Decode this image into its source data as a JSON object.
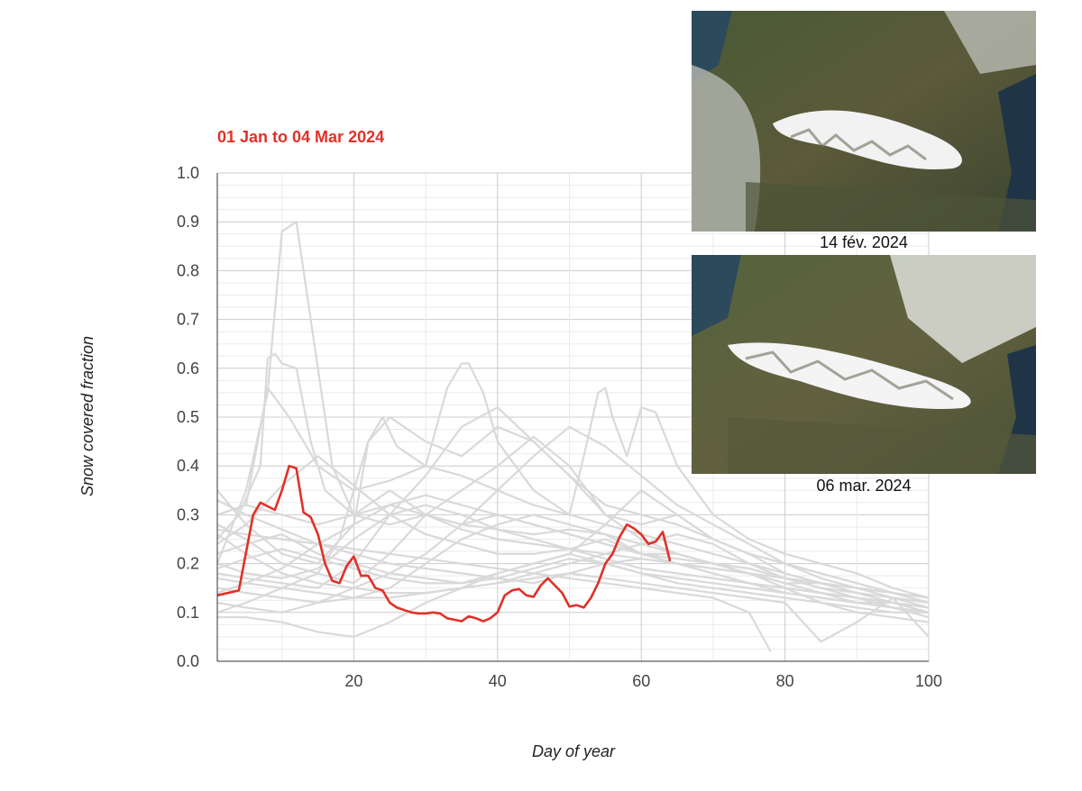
{
  "chart_data": {
    "type": "line",
    "title": "01 Jan to 04 Mar 2024",
    "xlabel": "Day of year",
    "ylabel": "Snow covered fraction",
    "xlim": [
      1,
      100
    ],
    "ylim": [
      0,
      1
    ],
    "x_ticks": [
      20,
      40,
      60,
      80,
      100
    ],
    "y_ticks": [
      "0.0",
      "0.1",
      "0.2",
      "0.3",
      "0.4",
      "0.5",
      "0.6",
      "0.7",
      "0.8",
      "0.9",
      "1.0"
    ],
    "grid": true,
    "highlight_color": "#e03127",
    "background_color": "#d9d9d9",
    "highlight_series": {
      "x": [
        1,
        4,
        6,
        7,
        9,
        10,
        11,
        12,
        13,
        14,
        15,
        16,
        17,
        18,
        19,
        20,
        21,
        22,
        23,
        24,
        25,
        26,
        27,
        28,
        29,
        30,
        31,
        32,
        33,
        34,
        35,
        36,
        37,
        38,
        39,
        40,
        41,
        42,
        43,
        44,
        45,
        46,
        47,
        48,
        49,
        50,
        51,
        52,
        53,
        54,
        55,
        56,
        57,
        58,
        59,
        60,
        61,
        62,
        63,
        64
      ],
      "y": [
        0.135,
        0.145,
        0.3,
        0.325,
        0.31,
        0.35,
        0.4,
        0.395,
        0.305,
        0.295,
        0.26,
        0.2,
        0.165,
        0.16,
        0.195,
        0.215,
        0.175,
        0.175,
        0.15,
        0.145,
        0.12,
        0.11,
        0.105,
        0.1,
        0.098,
        0.098,
        0.1,
        0.098,
        0.088,
        0.085,
        0.082,
        0.092,
        0.088,
        0.082,
        0.088,
        0.1,
        0.135,
        0.145,
        0.148,
        0.135,
        0.132,
        0.155,
        0.17,
        0.155,
        0.14,
        0.112,
        0.115,
        0.11,
        0.13,
        0.16,
        0.2,
        0.22,
        0.255,
        0.28,
        0.272,
        0.26,
        0.24,
        0.245,
        0.265,
        0.205
      ]
    },
    "background_series": [
      {
        "x": [
          1,
          5,
          8,
          10,
          12,
          14,
          17,
          20,
          25,
          30,
          35,
          40,
          45,
          50,
          55,
          60,
          65,
          70,
          75,
          80,
          85,
          90,
          95,
          100
        ],
        "y": [
          0.2,
          0.35,
          0.55,
          0.88,
          0.9,
          0.7,
          0.4,
          0.3,
          0.28,
          0.3,
          0.28,
          0.27,
          0.26,
          0.27,
          0.26,
          0.22,
          0.22,
          0.2,
          0.18,
          0.16,
          0.16,
          0.15,
          0.13,
          0.12
        ]
      },
      {
        "x": [
          1,
          4,
          7,
          8,
          9,
          10,
          12,
          14,
          16,
          20,
          25,
          30,
          35,
          40,
          45,
          50,
          55,
          60,
          65,
          70,
          75,
          80,
          85,
          90,
          95,
          100
        ],
        "y": [
          0.25,
          0.3,
          0.4,
          0.62,
          0.63,
          0.61,
          0.6,
          0.45,
          0.35,
          0.3,
          0.35,
          0.3,
          0.28,
          0.3,
          0.28,
          0.26,
          0.24,
          0.22,
          0.21,
          0.2,
          0.19,
          0.17,
          0.16,
          0.14,
          0.12,
          0.1
        ]
      },
      {
        "x": [
          1,
          5,
          8,
          11,
          15,
          20,
          25,
          30,
          33,
          35,
          36,
          38,
          40,
          45,
          50,
          55,
          60,
          65,
          70,
          75,
          80,
          85,
          90,
          95,
          100
        ],
        "y": [
          0.3,
          0.32,
          0.56,
          0.5,
          0.4,
          0.35,
          0.37,
          0.4,
          0.56,
          0.61,
          0.61,
          0.55,
          0.45,
          0.35,
          0.3,
          0.28,
          0.26,
          0.24,
          0.22,
          0.2,
          0.18,
          0.16,
          0.15,
          0.14,
          0.13
        ]
      },
      {
        "x": [
          1,
          5,
          10,
          15,
          20,
          22,
          24,
          26,
          30,
          35,
          40,
          45,
          50,
          52,
          54,
          55,
          56,
          58,
          60,
          62,
          65,
          70,
          75,
          80,
          85,
          90,
          95,
          100
        ],
        "y": [
          0.35,
          0.28,
          0.22,
          0.2,
          0.28,
          0.45,
          0.5,
          0.44,
          0.4,
          0.38,
          0.35,
          0.32,
          0.3,
          0.42,
          0.55,
          0.56,
          0.5,
          0.42,
          0.52,
          0.51,
          0.4,
          0.3,
          0.25,
          0.22,
          0.2,
          0.18,
          0.15,
          0.13
        ]
      },
      {
        "x": [
          1,
          5,
          10,
          15,
          18,
          20,
          22,
          25,
          30,
          35,
          40,
          45,
          50,
          55,
          60,
          65,
          70,
          75,
          80,
          85,
          90,
          95,
          100
        ],
        "y": [
          0.1,
          0.12,
          0.15,
          0.18,
          0.25,
          0.35,
          0.45,
          0.5,
          0.45,
          0.42,
          0.48,
          0.45,
          0.38,
          0.32,
          0.3,
          0.28,
          0.25,
          0.22,
          0.2,
          0.18,
          0.16,
          0.14,
          0.12
        ]
      },
      {
        "x": [
          1,
          5,
          10,
          15,
          20,
          25,
          30,
          35,
          40,
          45,
          50,
          55,
          60,
          65,
          70,
          75,
          80,
          85,
          90,
          95,
          100
        ],
        "y": [
          0.18,
          0.17,
          0.16,
          0.15,
          0.2,
          0.3,
          0.38,
          0.48,
          0.52,
          0.45,
          0.38,
          0.3,
          0.25,
          0.22,
          0.2,
          0.19,
          0.17,
          0.15,
          0.14,
          0.13,
          0.12
        ]
      },
      {
        "x": [
          1,
          5,
          10,
          15,
          20,
          25,
          30,
          35,
          40,
          45,
          50,
          55,
          60,
          65,
          70,
          75,
          80,
          85,
          90,
          95,
          100
        ],
        "y": [
          0.28,
          0.25,
          0.2,
          0.18,
          0.16,
          0.22,
          0.3,
          0.35,
          0.4,
          0.46,
          0.4,
          0.3,
          0.28,
          0.3,
          0.25,
          0.22,
          0.2,
          0.17,
          0.15,
          0.13,
          0.11
        ]
      },
      {
        "x": [
          1,
          5,
          10,
          15,
          20,
          25,
          30,
          35,
          40,
          45,
          50,
          55,
          60,
          65,
          70,
          75,
          80,
          85,
          90,
          95,
          100
        ],
        "y": [
          0.15,
          0.14,
          0.13,
          0.12,
          0.13,
          0.15,
          0.2,
          0.25,
          0.28,
          0.3,
          0.28,
          0.26,
          0.24,
          0.22,
          0.2,
          0.18,
          0.15,
          0.12,
          0.1,
          0.09,
          0.08
        ]
      },
      {
        "x": [
          1,
          5,
          10,
          15,
          20,
          25,
          30,
          35,
          40,
          45,
          50,
          55,
          60,
          65,
          70,
          75,
          80,
          85,
          90,
          95,
          100
        ],
        "y": [
          0.22,
          0.24,
          0.26,
          0.22,
          0.2,
          0.18,
          0.17,
          0.16,
          0.18,
          0.2,
          0.22,
          0.28,
          0.35,
          0.3,
          0.25,
          0.22,
          0.18,
          0.16,
          0.14,
          0.12,
          0.1
        ]
      },
      {
        "x": [
          1,
          5,
          10,
          15,
          20,
          25,
          30,
          35,
          40,
          45,
          50,
          55,
          60,
          65,
          70,
          75,
          80,
          85,
          90,
          95,
          100
        ],
        "y": [
          0.3,
          0.32,
          0.3,
          0.28,
          0.3,
          0.32,
          0.34,
          0.32,
          0.3,
          0.28,
          0.26,
          0.24,
          0.22,
          0.2,
          0.18,
          0.16,
          0.15,
          0.14,
          0.13,
          0.12,
          0.11
        ]
      },
      {
        "x": [
          1,
          5,
          10,
          15,
          20,
          25,
          30,
          35,
          40,
          45,
          50,
          55,
          60,
          65,
          70,
          75,
          80,
          85,
          90,
          95,
          100
        ],
        "y": [
          0.12,
          0.11,
          0.1,
          0.12,
          0.15,
          0.18,
          0.22,
          0.28,
          0.35,
          0.42,
          0.48,
          0.44,
          0.38,
          0.32,
          0.28,
          0.24,
          0.2,
          0.18,
          0.16,
          0.14,
          0.12
        ]
      },
      {
        "x": [
          1,
          5,
          10,
          15,
          20,
          25,
          30,
          35,
          40,
          45,
          50,
          55,
          60,
          65,
          70,
          75,
          80,
          85,
          90,
          95,
          100
        ],
        "y": [
          0.26,
          0.22,
          0.18,
          0.16,
          0.15,
          0.14,
          0.14,
          0.15,
          0.16,
          0.18,
          0.2,
          0.22,
          0.24,
          0.26,
          0.24,
          0.2,
          0.17,
          0.15,
          0.13,
          0.11,
          0.09
        ]
      },
      {
        "x": [
          1,
          5,
          10,
          15,
          20,
          25,
          30,
          35,
          40,
          45,
          50,
          55,
          60,
          65,
          70,
          75,
          80,
          85,
          90,
          95,
          100
        ],
        "y": [
          0.09,
          0.09,
          0.08,
          0.06,
          0.05,
          0.08,
          0.12,
          0.15,
          0.18,
          0.2,
          0.22,
          0.2,
          0.18,
          0.16,
          0.15,
          0.14,
          0.13,
          0.12,
          0.11,
          0.1,
          0.1
        ]
      },
      {
        "x": [
          1,
          5,
          10,
          15,
          20,
          25,
          30,
          35,
          40,
          45,
          50,
          55,
          60,
          65,
          70,
          75,
          80,
          85,
          90,
          95,
          100
        ],
        "y": [
          0.2,
          0.18,
          0.17,
          0.19,
          0.25,
          0.3,
          0.32,
          0.3,
          0.27,
          0.25,
          0.23,
          0.21,
          0.19,
          0.18,
          0.17,
          0.16,
          0.15,
          0.14,
          0.13,
          0.12,
          0.11
        ]
      },
      {
        "x": [
          1,
          5,
          10,
          15,
          20,
          25,
          30,
          35,
          40,
          45,
          50,
          55,
          60,
          65,
          70,
          75,
          80,
          85,
          90,
          95,
          100
        ],
        "y": [
          0.33,
          0.3,
          0.27,
          0.24,
          0.22,
          0.2,
          0.19,
          0.18,
          0.17,
          0.16,
          0.18,
          0.2,
          0.21,
          0.2,
          0.18,
          0.16,
          0.14,
          0.13,
          0.12,
          0.11,
          0.1
        ]
      },
      {
        "x": [
          1,
          5,
          10,
          15,
          20,
          25,
          30,
          35,
          40,
          45,
          50,
          55,
          60,
          65,
          70,
          75,
          80,
          85,
          90,
          95,
          100
        ],
        "y": [
          0.14,
          0.16,
          0.19,
          0.24,
          0.28,
          0.32,
          0.3,
          0.27,
          0.25,
          0.24,
          0.23,
          0.22,
          0.21,
          0.2,
          0.19,
          0.18,
          0.17,
          0.16,
          0.15,
          0.14,
          0.13
        ]
      },
      {
        "x": [
          1,
          5,
          10,
          15,
          20,
          25,
          30,
          35,
          40,
          45,
          50,
          55,
          60,
          65,
          70,
          75,
          78
        ],
        "y": [
          0.27,
          0.26,
          0.25,
          0.24,
          0.23,
          0.22,
          0.21,
          0.2,
          0.19,
          0.18,
          0.17,
          0.16,
          0.15,
          0.14,
          0.13,
          0.1,
          0.02
        ]
      },
      {
        "x": [
          1,
          5,
          10,
          15,
          20,
          25,
          30,
          35,
          40,
          45,
          50,
          55,
          60,
          65,
          70,
          75,
          80,
          85,
          90,
          95,
          100
        ],
        "y": [
          0.17,
          0.16,
          0.15,
          0.14,
          0.13,
          0.13,
          0.14,
          0.15,
          0.16,
          0.17,
          0.18,
          0.17,
          0.16,
          0.15,
          0.14,
          0.13,
          0.12,
          0.04,
          0.08,
          0.13,
          0.05
        ]
      },
      {
        "x": [
          1,
          5,
          10,
          15,
          20,
          25,
          30,
          35,
          40,
          45,
          50,
          55,
          60,
          65,
          70,
          75,
          80,
          85,
          90,
          95,
          100
        ],
        "y": [
          0.24,
          0.28,
          0.36,
          0.42,
          0.36,
          0.3,
          0.26,
          0.24,
          0.22,
          0.22,
          0.23,
          0.25,
          0.22,
          0.2,
          0.19,
          0.18,
          0.16,
          0.14,
          0.12,
          0.11,
          0.1
        ]
      },
      {
        "x": [
          1,
          5,
          10,
          15,
          20,
          25,
          30,
          35,
          40,
          45,
          50,
          55,
          60,
          65,
          70,
          75,
          80,
          85,
          90,
          95,
          100
        ],
        "y": [
          0.19,
          0.21,
          0.23,
          0.21,
          0.19,
          0.17,
          0.16,
          0.16,
          0.17,
          0.19,
          0.21,
          0.2,
          0.18,
          0.17,
          0.16,
          0.15,
          0.14,
          0.13,
          0.12,
          0.12,
          0.11
        ]
      }
    ]
  },
  "images": [
    {
      "caption": "14 fév. 2024"
    },
    {
      "caption": "06 mar. 2024"
    }
  ]
}
